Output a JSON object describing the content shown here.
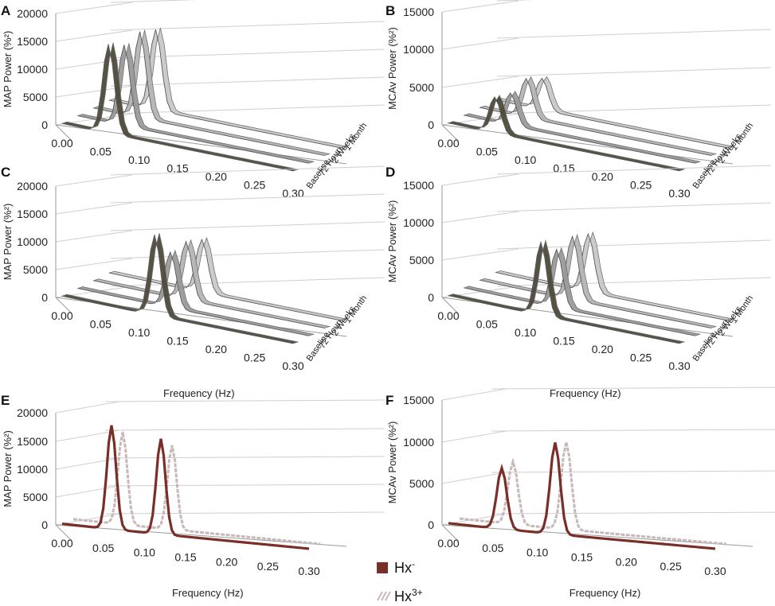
{
  "legend": {
    "items": [
      {
        "label": "Hx",
        "sup": "-",
        "color": "#7a2e28"
      },
      {
        "label": "Hx",
        "sup": "3+",
        "color": "#c8b8b8"
      }
    ]
  },
  "chart_data": [
    {
      "panel": "A",
      "type": "line",
      "style": "ribbon3d",
      "ylabel": "MAP Power (%²)",
      "xlabel": "",
      "ylim": [
        0,
        20000
      ],
      "yticks": [
        "20000",
        "15000",
        "10000",
        "5000",
        "0"
      ],
      "xticks": [
        "0.00",
        "0.05",
        "0.10",
        "0.15",
        "0.20",
        "0.25",
        "0.30"
      ],
      "series": [
        {
          "name": "Baseline",
          "peak_x": 0.06,
          "peak": 16000,
          "color": "#4e4a3a"
        },
        {
          "name": "72 Hours",
          "peak_x": 0.06,
          "peak": 14500,
          "color": "#9a9a9a"
        },
        {
          "name": "2 Weeks",
          "peak_x": 0.06,
          "peak": 15500,
          "color": "#b5b5b5"
        },
        {
          "name": "1 Month",
          "peak_x": 0.06,
          "peak": 14500,
          "color": "#c9c9c9"
        }
      ]
    },
    {
      "panel": "B",
      "type": "line",
      "style": "ribbon3d",
      "ylabel": "MCAv Power (%²)",
      "xlabel": "",
      "ylim": [
        0,
        15000
      ],
      "yticks": [
        "15000",
        "10000",
        "5000",
        "0"
      ],
      "xticks": [
        "0.00",
        "0.05",
        "0.10",
        "0.15",
        "0.20",
        "0.25",
        "0.30"
      ],
      "series": [
        {
          "name": "Baseline",
          "peak_x": 0.06,
          "peak": 4800,
          "color": "#4e4a3a"
        },
        {
          "name": "72 Hours",
          "peak_x": 0.06,
          "peak": 4300,
          "color": "#9a9a9a"
        },
        {
          "name": "2 Weeks",
          "peak_x": 0.06,
          "peak": 5200,
          "color": "#b5b5b5"
        },
        {
          "name": "1 Month",
          "peak_x": 0.06,
          "peak": 4200,
          "color": "#c9c9c9"
        }
      ]
    },
    {
      "panel": "C",
      "type": "line",
      "style": "ribbon3d",
      "ylabel": "MAP Power (%²)",
      "xlabel": "Frequency (Hz)",
      "ylim": [
        0,
        20000
      ],
      "yticks": [
        "20000",
        "15000",
        "10000",
        "5000",
        "0"
      ],
      "xticks": [
        "0.00",
        "0.05",
        "0.10",
        "0.15",
        "0.20",
        "0.25",
        "0.30"
      ],
      "series": [
        {
          "name": "Baseline",
          "peak_x": 0.12,
          "peak": 14500,
          "color": "#4e4a3a"
        },
        {
          "name": "72 Hours",
          "peak_x": 0.12,
          "peak": 10000,
          "color": "#9a9a9a"
        },
        {
          "name": "2 Weeks",
          "peak_x": 0.12,
          "peak": 10500,
          "color": "#b5b5b5"
        },
        {
          "name": "1 Month",
          "peak_x": 0.12,
          "peak": 9500,
          "color": "#c9c9c9"
        }
      ]
    },
    {
      "panel": "D",
      "type": "line",
      "style": "ribbon3d",
      "ylabel": "MCAv Power (%²)",
      "xlabel": "Frequency (Hz)",
      "ylim": [
        0,
        15000
      ],
      "yticks": [
        "15000",
        "10000",
        "5000",
        "0"
      ],
      "xticks": [
        "0.00",
        "0.05",
        "0.10",
        "0.15",
        "0.20",
        "0.25",
        "0.30"
      ],
      "series": [
        {
          "name": "Baseline",
          "peak_x": 0.12,
          "peak": 9800,
          "color": "#4e4a3a"
        },
        {
          "name": "72 Hours",
          "peak_x": 0.12,
          "peak": 7800,
          "color": "#9a9a9a"
        },
        {
          "name": "2 Weeks",
          "peak_x": 0.12,
          "peak": 8500,
          "color": "#b5b5b5"
        },
        {
          "name": "1 Month",
          "peak_x": 0.12,
          "peak": 7800,
          "color": "#c9c9c9"
        }
      ]
    },
    {
      "panel": "E",
      "type": "line",
      "style": "line3d",
      "ylabel": "MAP Power (%²)",
      "xlabel": "Frequency (Hz)",
      "ylim": [
        0,
        20000
      ],
      "yticks": [
        "20000",
        "15000",
        "10000",
        "5000",
        "0"
      ],
      "xticks": [
        "0.00",
        "0.05",
        "0.10",
        "0.15",
        "0.20",
        "0.25",
        "0.30"
      ],
      "series": [
        {
          "name": "Hx-",
          "peaks": [
            [
              0.06,
              18500
            ],
            [
              0.12,
              17000
            ]
          ],
          "color": "#7a2e28"
        },
        {
          "name": "Hx3+",
          "peaks": [
            [
              0.06,
              16500
            ],
            [
              0.12,
              15000
            ]
          ],
          "color": "#c8b8b8"
        }
      ]
    },
    {
      "panel": "F",
      "type": "line",
      "style": "line3d",
      "ylabel": "MCAv Power (%²)",
      "xlabel": "Frequency (Hz)",
      "ylim": [
        0,
        15000
      ],
      "yticks": [
        "15000",
        "10000",
        "5000",
        "0"
      ],
      "xticks": [
        "0.00",
        "0.05",
        "0.10",
        "0.15",
        "0.20",
        "0.25",
        "0.30"
      ],
      "series": [
        {
          "name": "Hx-",
          "peaks": [
            [
              0.06,
              7300
            ],
            [
              0.12,
              11000
            ]
          ],
          "color": "#7a2e28"
        },
        {
          "name": "Hx3+",
          "peaks": [
            [
              0.06,
              7500
            ],
            [
              0.12,
              10500
            ]
          ],
          "color": "#c8b8b8"
        }
      ]
    }
  ],
  "depth_labels": [
    "Baseline",
    "72 Hours",
    "2 Weeks",
    "1 Month"
  ]
}
